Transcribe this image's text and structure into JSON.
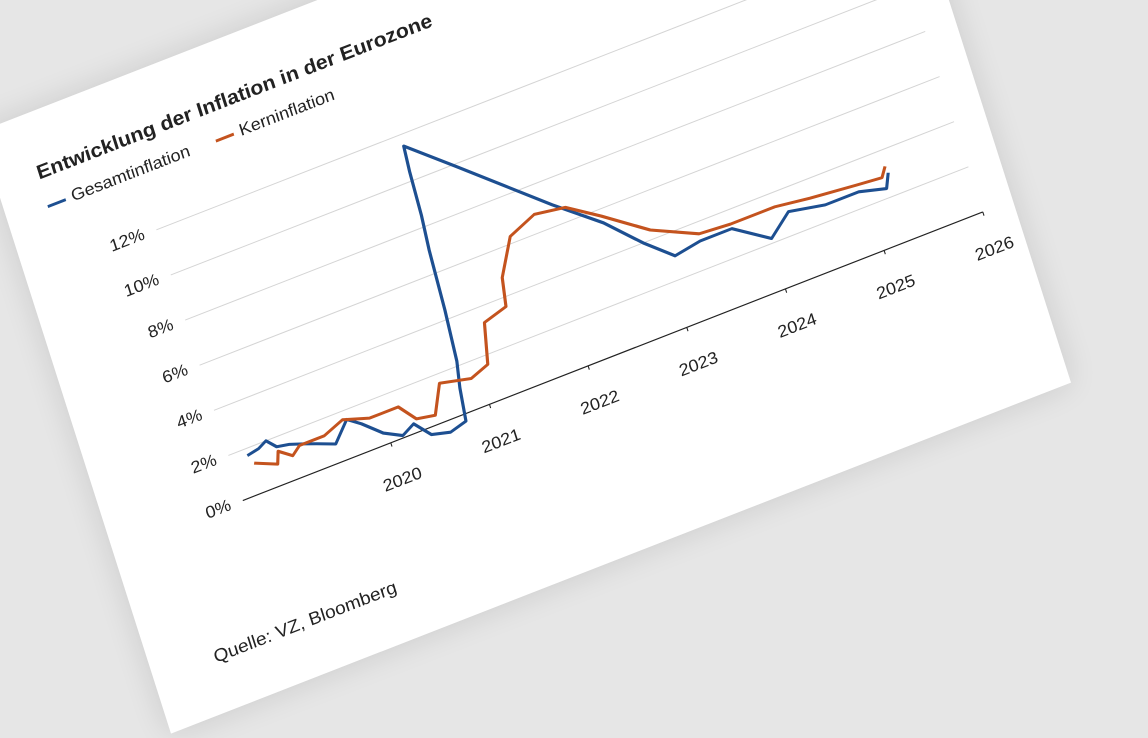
{
  "chart_data": {
    "type": "line",
    "title": "Entwicklung der Inflation in der Eurozone",
    "source": "Quelle: VZ, Bloomberg",
    "series": [
      {
        "name": "Gesamtinflation",
        "color": "#1d4f91",
        "x": [
          2018.67,
          2018.79,
          2018.88,
          2018.96,
          2019.08,
          2019.21,
          2019.33,
          2019.5,
          2019.67,
          2019.79,
          2019.96,
          2020.13,
          2020.26,
          2020.39,
          2020.57,
          2020.74,
          2020.78,
          2020.83,
          2020.87,
          2020.9,
          2020.93,
          2020.95,
          2020.97,
          2021.38,
          2021.76,
          2022.14,
          2022.55,
          2022.85,
          2023.1,
          2023.37,
          2023.69,
          2024.02,
          2024.25,
          2024.6,
          2024.94,
          2025.2,
          2025.26
        ],
        "values": [
          1.7,
          1.8,
          2.0,
          1.6,
          1.5,
          1.3,
          1.1,
          0.8,
          1.6,
          1.2,
          0.5,
          0.1,
          0.4,
          -0.3,
          -0.5,
          -0.3,
          1.1,
          2.2,
          4.4,
          7.0,
          8.5,
          10.4,
          11.5,
          9.9,
          8.4,
          6.9,
          5.4,
          4.0,
          3.0,
          3.2,
          3.2,
          2.2,
          3.0,
          2.7,
          2.7,
          2.4,
          3.0
        ]
      },
      {
        "name": "Kerninflation",
        "color": "#c4531e",
        "x": [
          2018.71,
          2018.92,
          2018.96,
          2019.08,
          2019.17,
          2019.42,
          2019.63,
          2019.88,
          2020.17,
          2020.3,
          2020.48,
          2020.61,
          2020.91,
          2021.1,
          2021.19,
          2021.43,
          2021.48,
          2021.67,
          2021.95,
          2022.25,
          2022.55,
          2022.95,
          2023.38,
          2023.69,
          2024.14,
          2024.48,
          2024.94,
          2025.19,
          2025.25
        ],
        "values": [
          1.3,
          0.9,
          1.4,
          1.0,
          1.3,
          1.3,
          1.65,
          1.3,
          1.3,
          0.55,
          0.4,
          1.6,
          1.3,
          1.6,
          3.3,
          3.6,
          4.8,
          6.3,
          6.8,
          6.6,
          5.7,
          4.4,
          3.5,
          3.4,
          3.4,
          3.2,
          3.0,
          2.9,
          3.3
        ]
      }
    ],
    "xlim": [
      2018.5,
      2026
    ],
    "xticks": [
      2020,
      2021,
      2022,
      2023,
      2024,
      2025,
      2026
    ],
    "ylim": [
      -1,
      14
    ],
    "yticks": [
      {
        "value": 0,
        "label": "0%"
      },
      {
        "value": 2,
        "label": "2%"
      },
      {
        "value": 4,
        "label": "4%"
      },
      {
        "value": 6,
        "label": "6%"
      },
      {
        "value": 8,
        "label": "8%"
      },
      {
        "value": 10,
        "label": "10%"
      },
      {
        "value": 12,
        "label": "12%"
      }
    ],
    "grid": true
  }
}
